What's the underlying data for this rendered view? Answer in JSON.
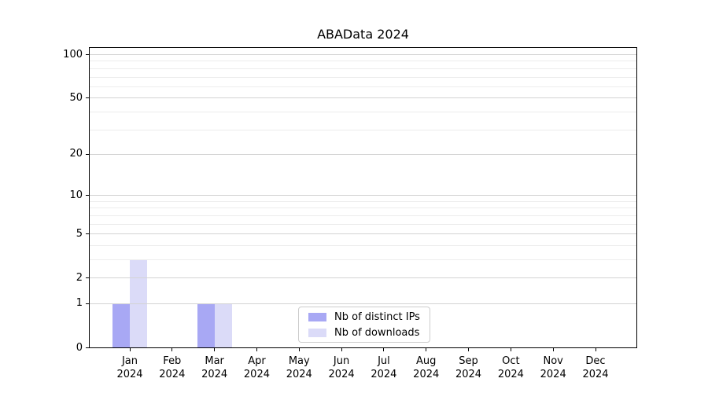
{
  "title": "ABAData 2024",
  "chart_data": {
    "type": "bar",
    "title": "ABAData 2024",
    "categories": [
      "Jan 2024",
      "Feb 2024",
      "Mar 2024",
      "Apr 2024",
      "May 2024",
      "Jun 2024",
      "Jul 2024",
      "Aug 2024",
      "Sep 2024",
      "Oct 2024",
      "Nov 2024",
      "Dec 2024"
    ],
    "series": [
      {
        "name": "Nb of distinct IPs",
        "color": "#a8a8f4",
        "values": [
          1,
          0,
          1,
          0,
          0,
          0,
          0,
          0,
          0,
          0,
          0,
          0
        ]
      },
      {
        "name": "Nb of downloads",
        "color": "#dbdbf8",
        "values": [
          3,
          0,
          1,
          0,
          0,
          0,
          0,
          0,
          0,
          0,
          0,
          0
        ]
      }
    ],
    "xlabel": "",
    "ylabel": "",
    "yscale": "log1p",
    "ylim": [
      0,
      112
    ],
    "y_major_ticks": [
      0,
      1,
      2,
      5,
      10,
      20,
      50,
      100
    ],
    "y_minor_gridlines": [
      3,
      4,
      6,
      7,
      8,
      9,
      30,
      40,
      60,
      70,
      80,
      90
    ],
    "grid": "horizontal",
    "legend_position": "lower center"
  },
  "colors": {
    "major_grid": "#d3d3d3",
    "minor_grid": "#ececec",
    "spine": "#000000",
    "text": "#000000",
    "legend_border": "#cccccc",
    "background": "#ffffff"
  }
}
